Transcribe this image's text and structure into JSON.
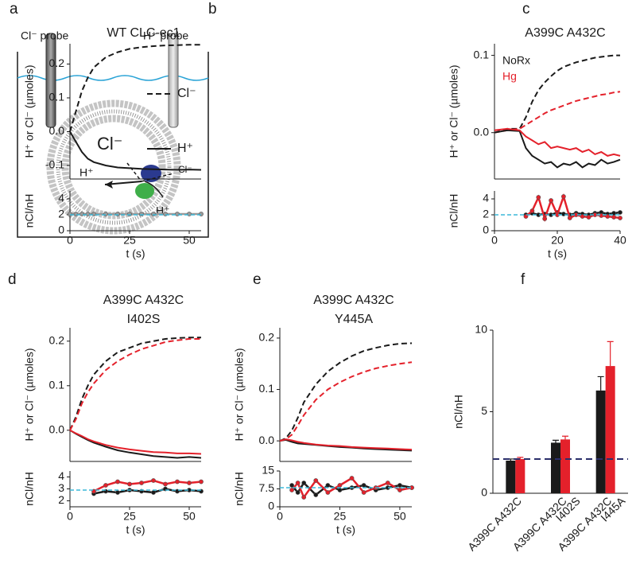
{
  "diagram": {
    "label": "a",
    "cl_probe": "Cl⁻ probe",
    "h_probe": "H⁺ probe",
    "inside": "Cl⁻",
    "h_in": "H⁺",
    "h_out": "H⁺",
    "cl_out": "Cl⁻"
  },
  "chart_data": [
    {
      "type": "line",
      "label": "b",
      "title": [
        "WT CLC-ec1"
      ],
      "xlabel": "t (s)",
      "ylabel": "H⁺ or Cl⁻ (µmoles)",
      "x": [
        0,
        2.5,
        5,
        7.5,
        10,
        15,
        20,
        25,
        30,
        35,
        40,
        45,
        50,
        55
      ],
      "xlim": [
        0,
        55
      ],
      "xticks": [
        0,
        25,
        50
      ],
      "ylim": [
        -0.14,
        0.26
      ],
      "yticks": [
        -0.1,
        {
          "value": 0,
          "label": "0.0"
        },
        0.1,
        0.2
      ],
      "legend": [
        {
          "name": "Cl⁻",
          "color": "#1a1a1a",
          "dash": true
        },
        {
          "name": "H⁺",
          "color": "#1a1a1a",
          "dash": false
        }
      ],
      "series": [
        {
          "color": "#1a1a1a",
          "dash": true,
          "values": [
            0,
            0.06,
            0.12,
            0.16,
            0.19,
            0.22,
            0.235,
            0.245,
            0.25,
            0.253,
            0.255,
            0.256,
            0.257,
            0.257
          ]
        },
        {
          "color": "#1a1a1a",
          "dash": false,
          "values": [
            0,
            -0.03,
            -0.06,
            -0.08,
            -0.09,
            -0.1,
            -0.106,
            -0.108,
            -0.11,
            -0.111,
            -0.112,
            -0.113,
            -0.112,
            -0.113
          ]
        }
      ],
      "ratio": {
        "ylabel": "nCl/nH",
        "ylim": [
          0,
          5
        ],
        "yticks": [
          0,
          2,
          4
        ],
        "reference": 2,
        "series": [
          {
            "color": "#999999",
            "values": [
              2.1,
              2.1,
              2.1,
              2.1,
              2.1,
              2.1,
              2.1,
              2.1,
              2.1,
              2.1,
              2.1,
              2.1,
              2.1,
              2.1
            ]
          }
        ]
      }
    },
    {
      "type": "line",
      "label": "c",
      "title": [
        "A399C A432C"
      ],
      "xlabel": "t (s)",
      "ylabel": "H⁺ or Cl⁻ (µmoles)",
      "x": [
        0,
        4,
        8,
        10,
        12,
        14,
        16,
        18,
        20,
        22,
        24,
        26,
        28,
        30,
        32,
        34,
        36,
        38,
        40
      ],
      "xlim": [
        0,
        40
      ],
      "xticks": [
        0,
        20,
        40
      ],
      "ylim": [
        -0.06,
        0.115
      ],
      "yticks": [
        {
          "value": 0,
          "label": "0.0"
        },
        0.1
      ],
      "legend": [
        {
          "name": "NoRx",
          "color": "#1a1a1a"
        },
        {
          "name": "Hg",
          "color": "#e4212b"
        }
      ],
      "series": [
        {
          "color": "#1a1a1a",
          "dash": true,
          "values": [
            0,
            0.005,
            0.005,
            0.02,
            0.04,
            0.055,
            0.065,
            0.073,
            0.08,
            0.085,
            0.088,
            0.091,
            0.093,
            0.095,
            0.097,
            0.098,
            0.099,
            0.1,
            0.1
          ]
        },
        {
          "color": "#e4212b",
          "dash": true,
          "values": [
            0,
            0.003,
            0.005,
            0.01,
            0.015,
            0.02,
            0.025,
            0.029,
            0.032,
            0.035,
            0.038,
            0.041,
            0.043,
            0.045,
            0.047,
            0.049,
            0.05,
            0.052,
            0.053
          ]
        },
        {
          "color": "#1a1a1a",
          "dash": false,
          "values": [
            0,
            0.003,
            0.002,
            -0.02,
            -0.03,
            -0.035,
            -0.04,
            -0.038,
            -0.045,
            -0.04,
            -0.042,
            -0.038,
            -0.045,
            -0.04,
            -0.042,
            -0.035,
            -0.04,
            -0.038,
            -0.035
          ]
        },
        {
          "color": "#e4212b",
          "dash": false,
          "values": [
            0.003,
            0.005,
            0.003,
            -0.005,
            -0.01,
            -0.015,
            -0.012,
            -0.02,
            -0.018,
            -0.02,
            -0.022,
            -0.02,
            -0.025,
            -0.022,
            -0.028,
            -0.025,
            -0.03,
            -0.028,
            -0.03
          ]
        }
      ],
      "ratio": {
        "ylabel": "nCl/nH",
        "ylim": [
          0,
          5
        ],
        "yticks": [
          0,
          2,
          4
        ],
        "reference": 2,
        "series": [
          {
            "color": "#1a1a1a",
            "values": [
              null,
              null,
              null,
              2,
              2.2,
              2,
              2.1,
              2,
              2.3,
              2.1,
              2,
              2.2,
              2.1,
              2,
              2.2,
              2.3,
              2.1,
              2.2,
              2.3
            ]
          },
          {
            "color": "#e4212b",
            "values": [
              null,
              null,
              null,
              1.8,
              2.5,
              4.2,
              1.5,
              3.8,
              2,
              4.3,
              1.6,
              2,
              1.8,
              1.7,
              2,
              1.9,
              1.8,
              1.7,
              1.6
            ]
          }
        ]
      }
    },
    {
      "type": "line",
      "label": "d",
      "title": [
        "A399C A432C",
        "I402S"
      ],
      "xlabel": "t (s)",
      "ylabel": "H⁺ or Cl⁻ (µmoles)",
      "x": [
        0,
        2.5,
        5,
        7.5,
        10,
        15,
        20,
        25,
        30,
        35,
        40,
        45,
        50,
        55
      ],
      "xlim": [
        0,
        55
      ],
      "xticks": [
        0,
        25,
        50
      ],
      "ylim": [
        -0.07,
        0.23
      ],
      "yticks": [
        {
          "value": 0,
          "label": "0.0"
        },
        0.1,
        0.2
      ],
      "series": [
        {
          "color": "#1a1a1a",
          "dash": true,
          "values": [
            0,
            0.03,
            0.07,
            0.1,
            0.125,
            0.155,
            0.175,
            0.185,
            0.195,
            0.2,
            0.205,
            0.207,
            0.208,
            0.208
          ]
        },
        {
          "color": "#e4212b",
          "dash": true,
          "values": [
            0,
            0.025,
            0.06,
            0.085,
            0.105,
            0.135,
            0.155,
            0.17,
            0.182,
            0.19,
            0.198,
            0.202,
            0.205,
            0.205
          ]
        },
        {
          "color": "#1a1a1a",
          "dash": false,
          "values": [
            0,
            -0.008,
            -0.015,
            -0.022,
            -0.028,
            -0.037,
            -0.045,
            -0.05,
            -0.054,
            -0.058,
            -0.06,
            -0.062,
            -0.06,
            -0.062
          ]
        },
        {
          "color": "#e4212b",
          "dash": false,
          "values": [
            0,
            -0.007,
            -0.013,
            -0.02,
            -0.025,
            -0.033,
            -0.039,
            -0.043,
            -0.046,
            -0.049,
            -0.05,
            -0.052,
            -0.052,
            -0.053
          ]
        }
      ],
      "ratio": {
        "ylabel": "nCl/nH",
        "ylim": [
          1.5,
          4.5
        ],
        "yticks": [
          2,
          3,
          4
        ],
        "reference": 2.9,
        "series": [
          {
            "color": "#1a1a1a",
            "values": [
              null,
              null,
              null,
              null,
              2.6,
              2.8,
              2.7,
              2.9,
              2.8,
              2.7,
              3,
              2.8,
              2.9,
              2.8
            ]
          },
          {
            "color": "#e4212b",
            "values": [
              null,
              null,
              null,
              null,
              2.8,
              3.3,
              3.6,
              3.4,
              3.5,
              3.7,
              3.4,
              3.6,
              3.5,
              3.6
            ]
          }
        ]
      }
    },
    {
      "type": "line",
      "label": "e",
      "title": [
        "A399C A432C",
        "Y445A"
      ],
      "xlabel": "t (s)",
      "ylabel": "H⁺ or Cl⁻ (µmoles)",
      "x": [
        0,
        2.5,
        5,
        7.5,
        10,
        15,
        20,
        25,
        30,
        35,
        40,
        45,
        50,
        55
      ],
      "xlim": [
        0,
        55
      ],
      "xticks": [
        0,
        25,
        50
      ],
      "ylim": [
        -0.04,
        0.22
      ],
      "yticks": [
        {
          "value": 0,
          "label": "0.0"
        },
        0.1,
        0.2
      ],
      "series": [
        {
          "color": "#1a1a1a",
          "dash": true,
          "values": [
            0,
            0.005,
            0.02,
            0.045,
            0.075,
            0.11,
            0.135,
            0.152,
            0.165,
            0.175,
            0.181,
            0.186,
            0.189,
            0.19
          ]
        },
        {
          "color": "#e4212b",
          "dash": true,
          "values": [
            0,
            0.003,
            0.012,
            0.03,
            0.05,
            0.08,
            0.1,
            0.114,
            0.125,
            0.134,
            0.141,
            0.146,
            0.15,
            0.153
          ]
        },
        {
          "color": "#1a1a1a",
          "dash": false,
          "values": [
            0,
            0.002,
            -0.002,
            -0.005,
            -0.006,
            -0.008,
            -0.01,
            -0.012,
            -0.013,
            -0.015,
            -0.016,
            -0.017,
            -0.018,
            -0.019
          ]
        },
        {
          "color": "#e4212b",
          "dash": false,
          "values": [
            0,
            0.003,
            0.001,
            -0.002,
            -0.004,
            -0.007,
            -0.009,
            -0.01,
            -0.012,
            -0.013,
            -0.014,
            -0.015,
            -0.016,
            -0.017
          ]
        }
      ],
      "ratio": {
        "ylabel": "nCl/nH",
        "ylim": [
          0,
          15
        ],
        "yticks": [
          0,
          7.5,
          15
        ],
        "reference": 8,
        "series": [
          {
            "color": "#1a1a1a",
            "values": [
              null,
              null,
              9,
              6,
              10,
              5,
              9,
              7,
              8,
              9,
              7,
              8,
              9,
              8
            ]
          },
          {
            "color": "#e4212b",
            "values": [
              null,
              null,
              7,
              10,
              4,
              11,
              6,
              9,
              12,
              6,
              8,
              10,
              7,
              8
            ]
          }
        ]
      }
    },
    {
      "type": "bar",
      "label": "f",
      "ylabel": "nCl/nH",
      "categories": [
        [
          "A399C A432C"
        ],
        [
          "A399C A432C",
          "I402S"
        ],
        [
          "A399C A432C",
          "I445A"
        ]
      ],
      "ylim": [
        0,
        10
      ],
      "yticks": [
        0,
        5,
        10
      ],
      "reference": 2.1,
      "series": [
        {
          "color": "#1a1a1a",
          "values": [
            2,
            3.1,
            6.3
          ],
          "errors": [
            0.1,
            0.15,
            0.85
          ]
        },
        {
          "color": "#e4212b",
          "values": [
            2.1,
            3.3,
            7.8
          ],
          "errors": [
            0.1,
            0.2,
            1.5
          ]
        }
      ]
    }
  ]
}
